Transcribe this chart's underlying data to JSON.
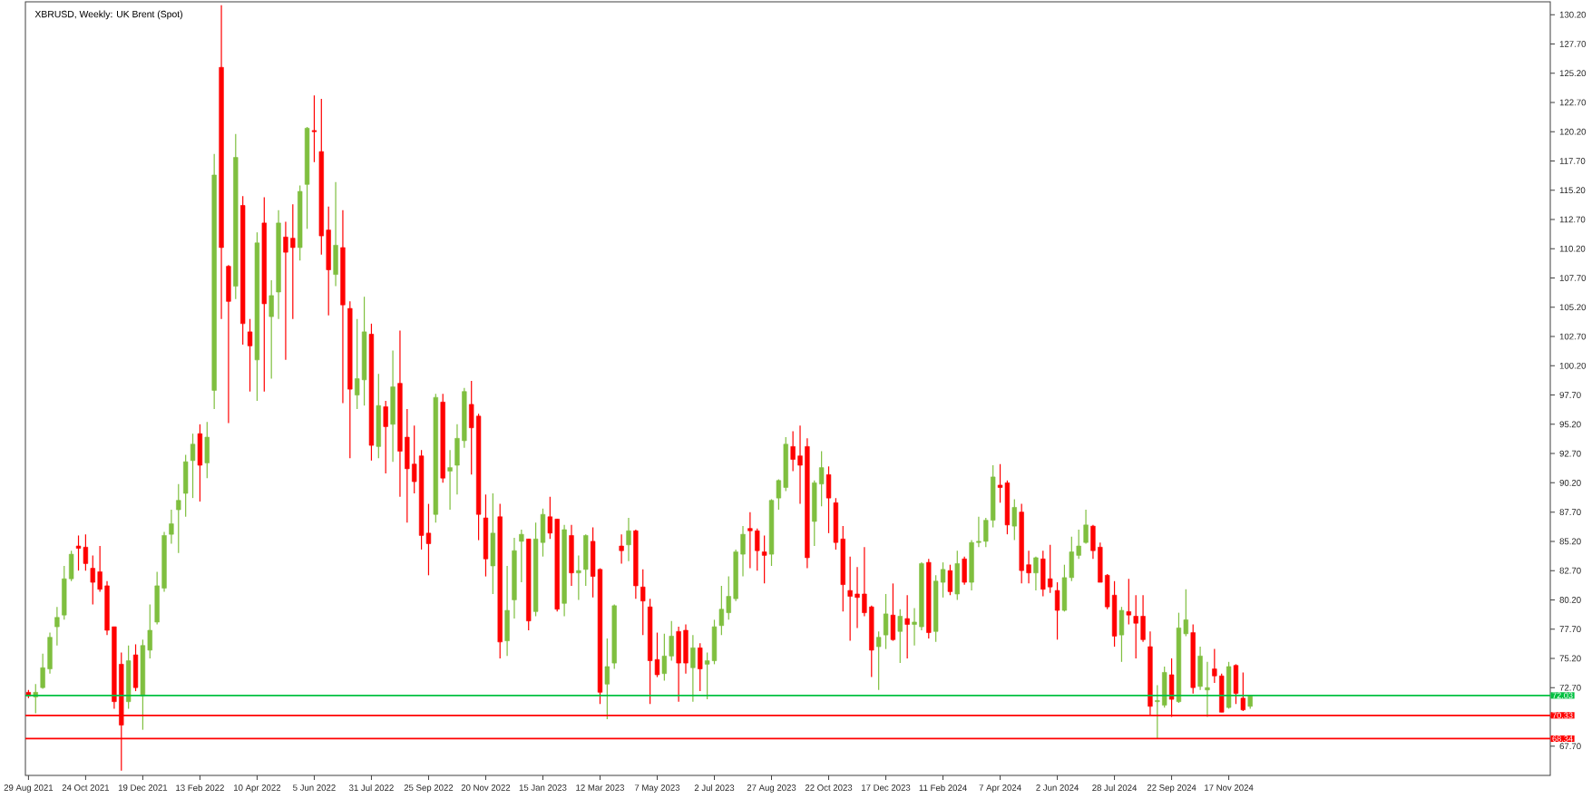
{
  "chart_data": {
    "type": "candlestick",
    "title": "XBRUSD, Weekly:  UK Brent (Spot)",
    "x": [
      "2021-08-29",
      "2021-09-05",
      "2021-09-12",
      "2021-09-19",
      "2021-09-26",
      "2021-10-03",
      "2021-10-10",
      "2021-10-17",
      "2021-10-24",
      "2021-10-31",
      "2021-11-07",
      "2021-11-14",
      "2021-11-21",
      "2021-11-28",
      "2021-12-05",
      "2021-12-12",
      "2021-12-19",
      "2021-12-26",
      "2022-01-02",
      "2022-01-09",
      "2022-01-16",
      "2022-01-23",
      "2022-01-30",
      "2022-02-06",
      "2022-02-13",
      "2022-02-20",
      "2022-02-27",
      "2022-03-06",
      "2022-03-13",
      "2022-03-20",
      "2022-03-27",
      "2022-04-03",
      "2022-04-10",
      "2022-04-17",
      "2022-04-24",
      "2022-05-01",
      "2022-05-08",
      "2022-05-15",
      "2022-05-22",
      "2022-05-29",
      "2022-06-05",
      "2022-06-12",
      "2022-06-19",
      "2022-06-26",
      "2022-07-03",
      "2022-07-10",
      "2022-07-17",
      "2022-07-24",
      "2022-07-31",
      "2022-08-07",
      "2022-08-14",
      "2022-08-21",
      "2022-08-28",
      "2022-09-04",
      "2022-09-11",
      "2022-09-18",
      "2022-09-25",
      "2022-10-02",
      "2022-10-09",
      "2022-10-16",
      "2022-10-23",
      "2022-10-30",
      "2022-11-06",
      "2022-11-13",
      "2022-11-20",
      "2022-11-27",
      "2022-12-04",
      "2022-12-11",
      "2022-12-18",
      "2022-12-25",
      "2023-01-01",
      "2023-01-08",
      "2023-01-15",
      "2023-01-22",
      "2023-01-29",
      "2023-02-05",
      "2023-02-12",
      "2023-02-19",
      "2023-02-26",
      "2023-03-05",
      "2023-03-12",
      "2023-03-19",
      "2023-03-26",
      "2023-04-02",
      "2023-04-09",
      "2023-04-16",
      "2023-04-23",
      "2023-04-30",
      "2023-05-07",
      "2023-05-14",
      "2023-05-21",
      "2023-05-28",
      "2023-06-04",
      "2023-06-11",
      "2023-06-18",
      "2023-06-25",
      "2023-07-02",
      "2023-07-09",
      "2023-07-16",
      "2023-07-23",
      "2023-07-30",
      "2023-08-06",
      "2023-08-13",
      "2023-08-20",
      "2023-08-27",
      "2023-09-03",
      "2023-09-10",
      "2023-09-17",
      "2023-09-24",
      "2023-10-01",
      "2023-10-08",
      "2023-10-15",
      "2023-10-22",
      "2023-10-29",
      "2023-11-05",
      "2023-11-12",
      "2023-11-19",
      "2023-11-26",
      "2023-12-03",
      "2023-12-10",
      "2023-12-17",
      "2023-12-24",
      "2023-12-31",
      "2024-01-07",
      "2024-01-14",
      "2024-01-21",
      "2024-01-28",
      "2024-02-04",
      "2024-02-11",
      "2024-02-18",
      "2024-02-25",
      "2024-03-03",
      "2024-03-10",
      "2024-03-17",
      "2024-03-24",
      "2024-03-31",
      "2024-04-07",
      "2024-04-14",
      "2024-04-21",
      "2024-04-28",
      "2024-05-05",
      "2024-05-12",
      "2024-05-19",
      "2024-05-26",
      "2024-06-02",
      "2024-06-09",
      "2024-06-16",
      "2024-06-23",
      "2024-06-30",
      "2024-07-07",
      "2024-07-14",
      "2024-07-21",
      "2024-07-28",
      "2024-08-04",
      "2024-08-11",
      "2024-08-18",
      "2024-08-25",
      "2024-09-01",
      "2024-09-08",
      "2024-09-15",
      "2024-09-22",
      "2024-09-29",
      "2024-10-06",
      "2024-10-13",
      "2024-10-20",
      "2024-10-27",
      "2024-11-03",
      "2024-11-10",
      "2024-11-17",
      "2024-11-24",
      "2024-12-01",
      "2024-12-08"
    ],
    "ohlc": [
      [
        72.3,
        72.5,
        71.8,
        72.0
      ],
      [
        71.9,
        73.0,
        70.5,
        72.3
      ],
      [
        72.7,
        75.6,
        72.6,
        74.4
      ],
      [
        74.3,
        77.4,
        73.9,
        77.0
      ],
      [
        77.9,
        79.6,
        76.3,
        78.7
      ],
      [
        78.9,
        83.1,
        78.5,
        82.0
      ],
      [
        82.0,
        84.4,
        81.8,
        84.1
      ],
      [
        84.8,
        85.7,
        82.7,
        84.6
      ],
      [
        84.7,
        85.8,
        82.7,
        83.3
      ],
      [
        82.9,
        84.0,
        79.8,
        81.7
      ],
      [
        82.6,
        84.8,
        80.9,
        81.1
      ],
      [
        81.4,
        81.8,
        77.2,
        77.6
      ],
      [
        77.9,
        77.9,
        70.9,
        71.5
      ],
      [
        74.7,
        75.7,
        65.6,
        69.5
      ],
      [
        71.5,
        76.3,
        70.9,
        75.0
      ],
      [
        75.5,
        76.4,
        72.4,
        72.7
      ],
      [
        72.0,
        76.8,
        69.1,
        76.3
      ],
      [
        75.9,
        79.8,
        75.2,
        77.6
      ],
      [
        78.3,
        82.6,
        78.1,
        81.4
      ],
      [
        81.2,
        86.0,
        80.9,
        85.7
      ],
      [
        85.8,
        87.9,
        85.0,
        86.7
      ],
      [
        87.9,
        90.1,
        84.2,
        88.7
      ],
      [
        89.3,
        92.6,
        87.3,
        92.0
      ],
      [
        92.1,
        94.4,
        88.9,
        93.5
      ],
      [
        94.4,
        95.2,
        88.6,
        91.7
      ],
      [
        91.9,
        95.4,
        90.6,
        94.1
      ],
      [
        98.1,
        118.3,
        96.5,
        116.5
      ],
      [
        125.7,
        131.0,
        104.2,
        110.3
      ],
      [
        108.7,
        108.8,
        95.3,
        105.7
      ],
      [
        107.0,
        120.0,
        105.9,
        118.0
      ],
      [
        113.9,
        114.7,
        102.0,
        103.8
      ],
      [
        103.1,
        104.2,
        98.0,
        101.9
      ],
      [
        100.7,
        111.6,
        97.2,
        110.7
      ],
      [
        112.4,
        114.6,
        98.0,
        105.5
      ],
      [
        104.4,
        107.5,
        99.1,
        106.2
      ],
      [
        106.5,
        113.5,
        104.2,
        112.4
      ],
      [
        111.2,
        112.5,
        100.7,
        109.9
      ],
      [
        111.1,
        114.0,
        104.2,
        110.3
      ],
      [
        110.3,
        115.6,
        109.2,
        115.1
      ],
      [
        115.7,
        120.6,
        111.9,
        120.5
      ],
      [
        120.3,
        123.3,
        117.6,
        120.2
      ],
      [
        118.5,
        123.0,
        109.7,
        111.3
      ],
      [
        111.8,
        113.8,
        104.5,
        108.4
      ],
      [
        108.0,
        115.9,
        107.0,
        110.5
      ],
      [
        110.3,
        113.5,
        97.0,
        105.4
      ],
      [
        105.1,
        105.7,
        92.3,
        98.2
      ],
      [
        97.7,
        104.2,
        96.5,
        99.1
      ],
      [
        99.0,
        106.1,
        96.8,
        103.1
      ],
      [
        102.9,
        103.8,
        92.1,
        93.4
      ],
      [
        93.3,
        99.5,
        92.3,
        96.8
      ],
      [
        96.7,
        97.2,
        91.0,
        95.0
      ],
      [
        95.2,
        101.5,
        92.0,
        98.4
      ],
      [
        98.7,
        103.2,
        89.0,
        92.9
      ],
      [
        94.1,
        96.5,
        86.8,
        91.4
      ],
      [
        91.8,
        95.1,
        89.3,
        90.3
      ],
      [
        92.5,
        93.0,
        84.5,
        85.7
      ],
      [
        85.9,
        88.4,
        82.3,
        85.0
      ],
      [
        87.5,
        97.8,
        86.8,
        97.5
      ],
      [
        97.1,
        97.8,
        90.2,
        90.6
      ],
      [
        91.2,
        93.0,
        87.9,
        91.5
      ],
      [
        91.7,
        95.2,
        89.2,
        94.0
      ],
      [
        93.8,
        98.3,
        93.2,
        98.0
      ],
      [
        96.9,
        98.9,
        90.9,
        94.9
      ],
      [
        95.9,
        96.1,
        85.3,
        87.5
      ],
      [
        87.2,
        89.2,
        82.2,
        83.7
      ],
      [
        83.1,
        89.3,
        80.7,
        85.9
      ],
      [
        87.3,
        88.4,
        75.2,
        76.6
      ],
      [
        76.7,
        83.1,
        75.4,
        79.3
      ],
      [
        80.2,
        85.5,
        78.6,
        84.4
      ],
      [
        85.2,
        86.2,
        81.7,
        85.8
      ],
      [
        85.4,
        85.4,
        77.6,
        78.4
      ],
      [
        79.2,
        86.8,
        78.8,
        85.4
      ],
      [
        85.1,
        88.0,
        83.9,
        87.5
      ],
      [
        87.3,
        89.0,
        85.4,
        85.9
      ],
      [
        87.1,
        87.1,
        79.2,
        79.4
      ],
      [
        79.9,
        86.6,
        78.8,
        86.2
      ],
      [
        85.7,
        86.6,
        81.4,
        82.5
      ],
      [
        82.5,
        84.0,
        80.2,
        82.7
      ],
      [
        82.8,
        85.8,
        81.4,
        85.7
      ],
      [
        85.2,
        86.4,
        80.4,
        82.2
      ],
      [
        82.8,
        82.9,
        71.3,
        72.3
      ],
      [
        73.0,
        76.9,
        70.0,
        74.5
      ],
      [
        74.8,
        79.8,
        74.3,
        79.7
      ],
      [
        84.8,
        85.8,
        83.3,
        84.4
      ],
      [
        84.9,
        87.2,
        83.5,
        86.1
      ],
      [
        86.1,
        86.2,
        80.3,
        81.4
      ],
      [
        81.3,
        82.8,
        77.2,
        80.1
      ],
      [
        79.6,
        80.3,
        71.3,
        75.0
      ],
      [
        75.1,
        77.4,
        73.6,
        73.8
      ],
      [
        73.9,
        77.3,
        73.3,
        75.4
      ],
      [
        75.4,
        78.4,
        75.0,
        77.1
      ],
      [
        77.5,
        77.9,
        71.5,
        74.8
      ],
      [
        77.6,
        78.1,
        73.9,
        74.8
      ],
      [
        74.4,
        77.2,
        71.5,
        76.1
      ],
      [
        76.1,
        76.5,
        72.4,
        74.3
      ],
      [
        74.7,
        75.7,
        71.7,
        75.0
      ],
      [
        75.0,
        78.5,
        74.7,
        77.9
      ],
      [
        78.0,
        81.4,
        77.2,
        79.4
      ],
      [
        79.1,
        82.2,
        78.5,
        80.5
      ],
      [
        80.3,
        84.5,
        80.1,
        84.3
      ],
      [
        84.1,
        86.5,
        82.2,
        85.8
      ],
      [
        86.3,
        87.7,
        82.9,
        86.1
      ],
      [
        86.1,
        86.3,
        82.7,
        84.4
      ],
      [
        84.3,
        85.7,
        81.6,
        84.0
      ],
      [
        84.1,
        88.8,
        83.1,
        88.7
      ],
      [
        88.9,
        90.5,
        87.9,
        90.4
      ],
      [
        89.8,
        94.1,
        89.5,
        93.5
      ],
      [
        93.3,
        94.6,
        91.2,
        92.2
      ],
      [
        92.5,
        95.1,
        88.4,
        91.7
      ],
      [
        93.3,
        94.0,
        82.9,
        83.8
      ],
      [
        86.9,
        90.4,
        84.8,
        90.2
      ],
      [
        90.1,
        92.9,
        88.2,
        91.5
      ],
      [
        90.9,
        91.6,
        85.9,
        88.9
      ],
      [
        88.5,
        88.9,
        84.5,
        85.1
      ],
      [
        85.4,
        86.5,
        79.2,
        81.5
      ],
      [
        81.0,
        83.9,
        76.7,
        80.5
      ],
      [
        80.7,
        83.0,
        77.8,
        80.4
      ],
      [
        80.7,
        84.7,
        78.8,
        79.1
      ],
      [
        79.6,
        79.7,
        73.6,
        75.9
      ],
      [
        76.2,
        77.5,
        72.5,
        77.0
      ],
      [
        77.2,
        80.7,
        76.0,
        79.0
      ],
      [
        78.9,
        81.6,
        76.7,
        76.8
      ],
      [
        77.5,
        79.4,
        74.8,
        78.8
      ],
      [
        78.6,
        80.6,
        75.2,
        78.1
      ],
      [
        78.1,
        79.5,
        76.3,
        78.3
      ],
      [
        77.9,
        83.4,
        77.6,
        83.3
      ],
      [
        83.4,
        83.7,
        76.9,
        77.4
      ],
      [
        77.5,
        82.3,
        76.6,
        81.8
      ],
      [
        81.7,
        83.4,
        80.4,
        82.8
      ],
      [
        82.7,
        83.2,
        80.6,
        80.9
      ],
      [
        80.7,
        84.4,
        80.2,
        83.3
      ],
      [
        83.7,
        83.9,
        81.5,
        81.7
      ],
      [
        81.7,
        85.3,
        81.0,
        85.1
      ],
      [
        85.1,
        87.3,
        84.7,
        85.2
      ],
      [
        85.2,
        87.2,
        84.7,
        87.0
      ],
      [
        87.0,
        91.7,
        86.4,
        90.7
      ],
      [
        90.0,
        91.8,
        88.5,
        89.8
      ],
      [
        90.2,
        90.4,
        85.8,
        86.6
      ],
      [
        86.5,
        88.8,
        85.3,
        88.1
      ],
      [
        87.7,
        88.4,
        81.6,
        82.7
      ],
      [
        83.2,
        84.4,
        81.6,
        82.5
      ],
      [
        82.5,
        83.9,
        81.0,
        83.8
      ],
      [
        83.7,
        84.4,
        80.5,
        81.1
      ],
      [
        82.0,
        84.9,
        80.8,
        81.3
      ],
      [
        81.0,
        81.7,
        76.8,
        79.3
      ],
      [
        79.3,
        83.2,
        79.2,
        82.1
      ],
      [
        82.1,
        85.6,
        81.8,
        84.3
      ],
      [
        84.0,
        86.2,
        83.7,
        84.8
      ],
      [
        85.1,
        87.9,
        85.0,
        86.6
      ],
      [
        86.5,
        86.6,
        83.7,
        84.4
      ],
      [
        84.7,
        85.1,
        81.7,
        81.7
      ],
      [
        82.3,
        82.4,
        79.4,
        79.6
      ],
      [
        80.6,
        81.8,
        76.2,
        77.1
      ],
      [
        77.2,
        79.6,
        74.9,
        79.3
      ],
      [
        79.2,
        82.0,
        78.1,
        78.9
      ],
      [
        78.8,
        80.6,
        75.2,
        78.2
      ],
      [
        78.8,
        80.6,
        76.6,
        76.8
      ],
      [
        76.2,
        77.5,
        70.4,
        71.1
      ],
      [
        71.5,
        72.9,
        68.3,
        71.6
      ],
      [
        71.2,
        74.5,
        71.0,
        74.0
      ],
      [
        73.8,
        75.2,
        70.2,
        71.7
      ],
      [
        71.5,
        79.1,
        71.4,
        77.8
      ],
      [
        77.3,
        81.1,
        77.1,
        78.5
      ],
      [
        77.4,
        78.1,
        72.2,
        72.7
      ],
      [
        72.8,
        76.2,
        72.5,
        75.4
      ],
      [
        72.5,
        74.9,
        70.2,
        72.7
      ],
      [
        74.3,
        76.0,
        73.1,
        73.7
      ],
      [
        73.7,
        73.9,
        70.6,
        70.6
      ],
      [
        71.0,
        74.9,
        70.9,
        74.5
      ],
      [
        74.6,
        74.7,
        71.3,
        72.2
      ],
      [
        71.8,
        74.0,
        70.7,
        70.8
      ],
      [
        71.1,
        72.1,
        70.9,
        72.0
      ]
    ],
    "xlim": [
      "2021-08-26",
      "2025-09-28"
    ],
    "xticks": [
      {
        "value": "2021-08-29",
        "label": "29 Aug 2021"
      },
      {
        "value": "2021-10-24",
        "label": "24 Oct 2021"
      },
      {
        "value": "2021-12-19",
        "label": "19 Dec 2021"
      },
      {
        "value": "2022-02-13",
        "label": "13 Feb 2022"
      },
      {
        "value": "2022-04-10",
        "label": "10 Apr 2022"
      },
      {
        "value": "2022-06-05",
        "label": "5 Jun 2022"
      },
      {
        "value": "2022-07-31",
        "label": "31 Jul 2022"
      },
      {
        "value": "2022-09-25",
        "label": "25 Sep 2022"
      },
      {
        "value": "2022-11-20",
        "label": "20 Nov 2022"
      },
      {
        "value": "2023-01-15",
        "label": "15 Jan 2023"
      },
      {
        "value": "2023-03-12",
        "label": "12 Mar 2023"
      },
      {
        "value": "2023-05-07",
        "label": "7 May 2023"
      },
      {
        "value": "2023-07-02",
        "label": "2 Jul 2023"
      },
      {
        "value": "2023-08-27",
        "label": "27 Aug 2023"
      },
      {
        "value": "2023-10-22",
        "label": "22 Oct 2023"
      },
      {
        "value": "2023-12-17",
        "label": "17 Dec 2023"
      },
      {
        "value": "2024-02-11",
        "label": "11 Feb 2024"
      },
      {
        "value": "2024-04-07",
        "label": "7 Apr 2024"
      },
      {
        "value": "2024-06-02",
        "label": "2 Jun 2024"
      },
      {
        "value": "2024-07-28",
        "label": "28 Jul 2024"
      },
      {
        "value": "2024-09-22",
        "label": "22 Sep 2024"
      },
      {
        "value": "2024-11-17",
        "label": "17 Nov 2024"
      }
    ],
    "ylim": [
      65.2,
      131.3
    ],
    "yticks": [
      {
        "value": 67.7,
        "label": "67.70"
      },
      {
        "value": 70.2,
        "label": null
      },
      {
        "value": 72.7,
        "label": "72.70"
      },
      {
        "value": 75.2,
        "label": "75.20"
      },
      {
        "value": 77.7,
        "label": "77.70"
      },
      {
        "value": 80.2,
        "label": "80.20"
      },
      {
        "value": 82.7,
        "label": "82.70"
      },
      {
        "value": 85.2,
        "label": "85.20"
      },
      {
        "value": 87.7,
        "label": "87.70"
      },
      {
        "value": 90.2,
        "label": "90.20"
      },
      {
        "value": 92.7,
        "label": "92.70"
      },
      {
        "value": 95.2,
        "label": "95.20"
      },
      {
        "value": 97.7,
        "label": "97.70"
      },
      {
        "value": 100.2,
        "label": "100.20"
      },
      {
        "value": 102.7,
        "label": "102.70"
      },
      {
        "value": 105.2,
        "label": "105.20"
      },
      {
        "value": 107.7,
        "label": "107.70"
      },
      {
        "value": 110.2,
        "label": "110.20"
      },
      {
        "value": 112.7,
        "label": "112.70"
      },
      {
        "value": 115.2,
        "label": "115.20"
      },
      {
        "value": 117.7,
        "label": "117.70"
      },
      {
        "value": 120.2,
        "label": "120.20"
      },
      {
        "value": 122.7,
        "label": "122.70"
      },
      {
        "value": 125.2,
        "label": "125.20"
      },
      {
        "value": 127.7,
        "label": "127.70"
      },
      {
        "value": 130.2,
        "label": "130.20"
      }
    ],
    "ref_lines": [
      {
        "axis": "y",
        "value": 72.03,
        "label": "72.03",
        "color": "#00c040"
      },
      {
        "axis": "y",
        "value": 70.33,
        "label": "70.33",
        "color": "#ff0000"
      },
      {
        "axis": "y",
        "value": 68.34,
        "label": "68.34",
        "color": "#ff0000"
      }
    ]
  }
}
